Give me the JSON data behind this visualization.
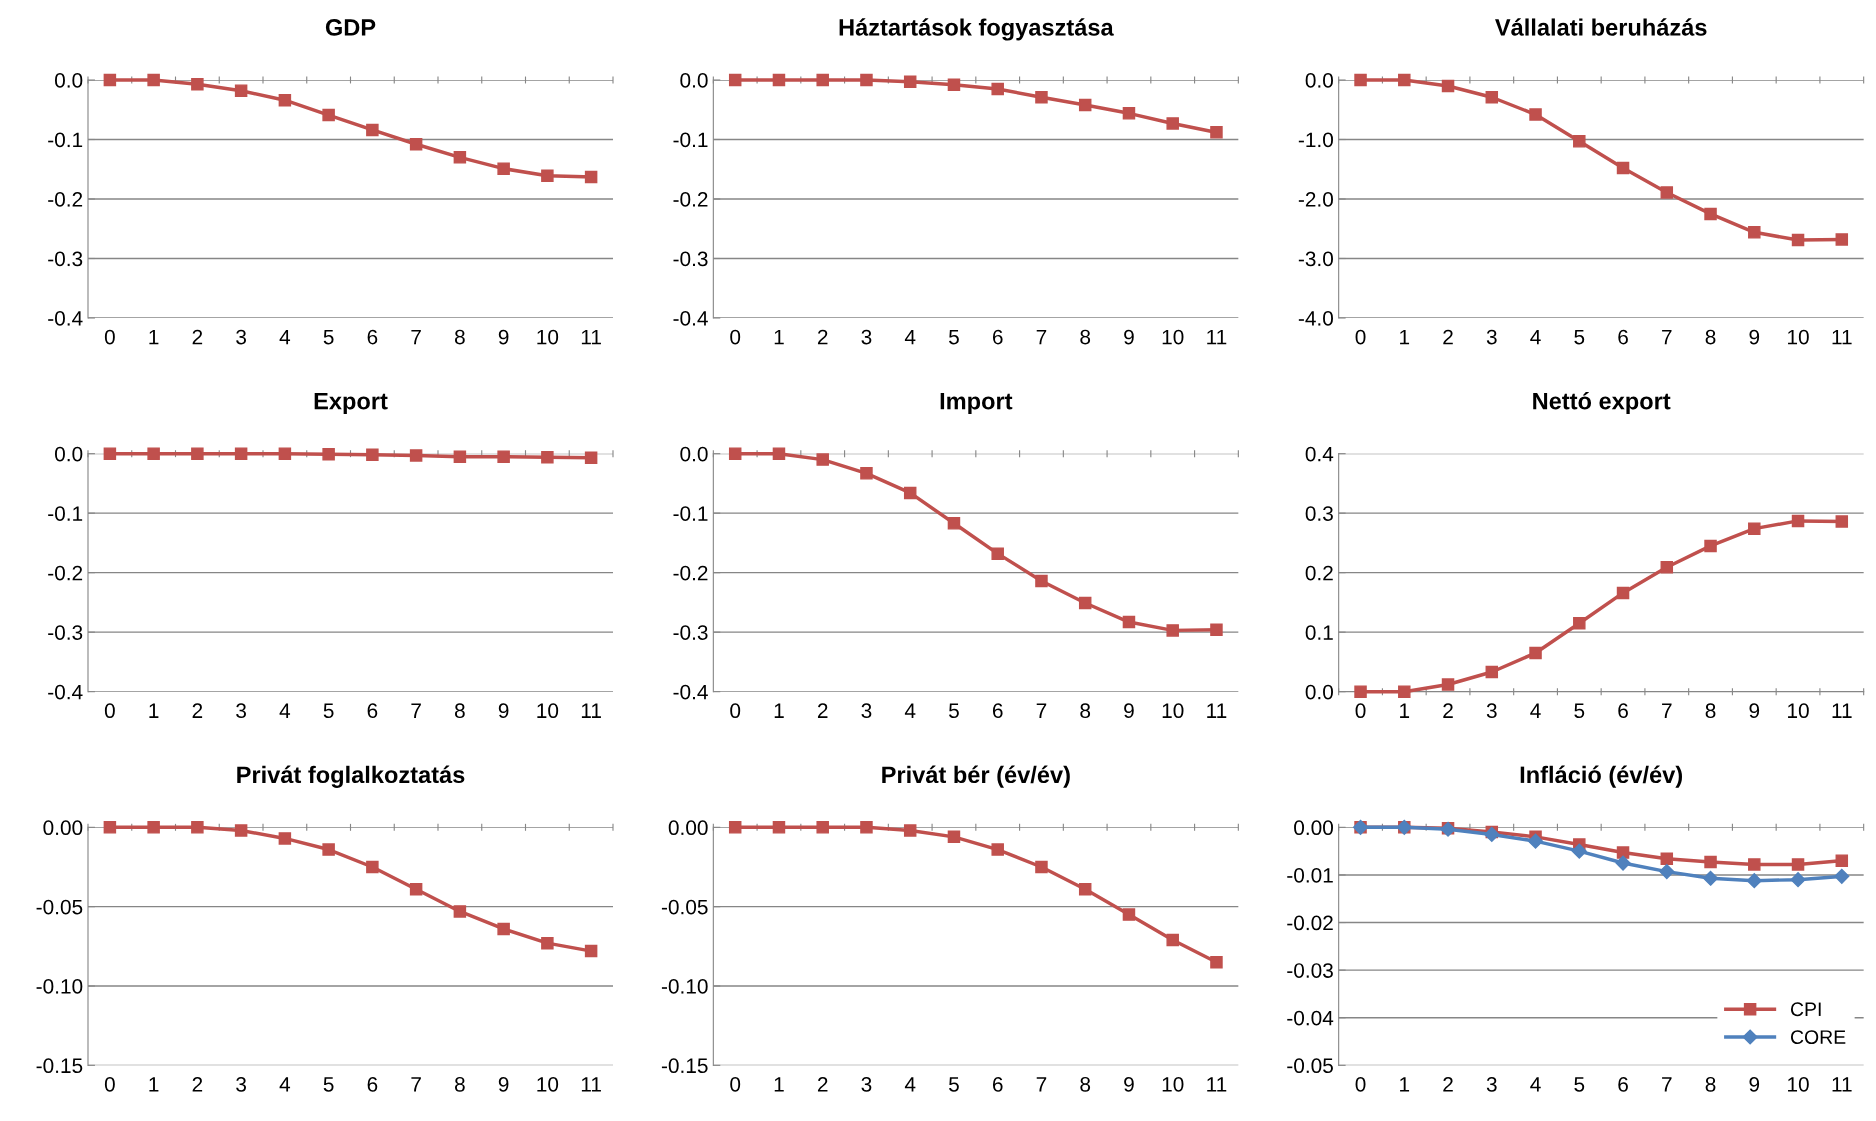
{
  "chart_data": [
    {
      "type": "line",
      "title": "GDP",
      "categories": [
        "0",
        "1",
        "2",
        "3",
        "4",
        "5",
        "6",
        "7",
        "8",
        "9",
        "10",
        "11"
      ],
      "ylim": [
        -0.4,
        0
      ],
      "yticks": [
        {
          "value": 0,
          "label": "0.0"
        },
        {
          "value": -0.1,
          "label": "-0.1"
        },
        {
          "value": -0.2,
          "label": "-0.2"
        },
        {
          "value": -0.3,
          "label": "-0.3"
        },
        {
          "value": -0.4,
          "label": "-0.4"
        }
      ],
      "grid": "y",
      "marker": "square",
      "series": [
        {
          "color": "#c0504d",
          "values": [
            0,
            0,
            -0.007,
            -0.018,
            -0.034,
            -0.059,
            -0.084,
            -0.108,
            -0.13,
            -0.149,
            -0.161,
            -0.163
          ]
        }
      ]
    },
    {
      "type": "line",
      "title": "Háztartások fogyasztása",
      "categories": [
        "0",
        "1",
        "2",
        "3",
        "4",
        "5",
        "6",
        "7",
        "8",
        "9",
        "10",
        "11"
      ],
      "ylim": [
        -0.4,
        0
      ],
      "yticks": [
        {
          "value": 0,
          "label": "0.0"
        },
        {
          "value": -0.1,
          "label": "-0.1"
        },
        {
          "value": -0.2,
          "label": "-0.2"
        },
        {
          "value": -0.3,
          "label": "-0.3"
        },
        {
          "value": -0.4,
          "label": "-0.4"
        }
      ],
      "grid": "y",
      "marker": "square",
      "series": [
        {
          "color": "#c0504d",
          "values": [
            0,
            0,
            0,
            0,
            -0.003,
            -0.008,
            -0.015,
            -0.029,
            -0.042,
            -0.056,
            -0.073,
            -0.088
          ]
        }
      ]
    },
    {
      "type": "line",
      "title": "Vállalati beruházás",
      "categories": [
        "0",
        "1",
        "2",
        "3",
        "4",
        "5",
        "6",
        "7",
        "8",
        "9",
        "10",
        "11"
      ],
      "ylim": [
        -4,
        0
      ],
      "yticks": [
        {
          "value": 0,
          "label": "0.0"
        },
        {
          "value": -1,
          "label": "-1.0"
        },
        {
          "value": -2,
          "label": "-2.0"
        },
        {
          "value": -3,
          "label": "-3.0"
        },
        {
          "value": -4,
          "label": "-4.0"
        }
      ],
      "grid": "y",
      "marker": "square",
      "series": [
        {
          "color": "#c0504d",
          "values": [
            0,
            0,
            -0.1,
            -0.29,
            -0.58,
            -1.03,
            -1.48,
            -1.89,
            -2.25,
            -2.56,
            -2.69,
            -2.68
          ]
        }
      ]
    },
    {
      "type": "line",
      "title": "Export",
      "categories": [
        "0",
        "1",
        "2",
        "3",
        "4",
        "5",
        "6",
        "7",
        "8",
        "9",
        "10",
        "11"
      ],
      "ylim": [
        -0.4,
        0
      ],
      "yticks": [
        {
          "value": 0,
          "label": "0.0"
        },
        {
          "value": -0.1,
          "label": "-0.1"
        },
        {
          "value": -0.2,
          "label": "-0.2"
        },
        {
          "value": -0.3,
          "label": "-0.3"
        },
        {
          "value": -0.4,
          "label": "-0.4"
        }
      ],
      "grid": "y",
      "marker": "square",
      "series": [
        {
          "color": "#c0504d",
          "values": [
            0,
            0,
            0,
            0,
            0,
            -0.001,
            -0.002,
            -0.003,
            -0.005,
            -0.005,
            -0.006,
            -0.007
          ]
        }
      ]
    },
    {
      "type": "line",
      "title": "Import",
      "categories": [
        "0",
        "1",
        "2",
        "3",
        "4",
        "5",
        "6",
        "7",
        "8",
        "9",
        "10",
        "11"
      ],
      "ylim": [
        -0.4,
        0
      ],
      "yticks": [
        {
          "value": 0,
          "label": "0.0"
        },
        {
          "value": -0.1,
          "label": "-0.1"
        },
        {
          "value": -0.2,
          "label": "-0.2"
        },
        {
          "value": -0.3,
          "label": "-0.3"
        },
        {
          "value": -0.4,
          "label": "-0.4"
        }
      ],
      "grid": "y",
      "marker": "square",
      "series": [
        {
          "color": "#c0504d",
          "values": [
            0,
            0,
            -0.01,
            -0.033,
            -0.066,
            -0.117,
            -0.168,
            -0.214,
            -0.251,
            -0.283,
            -0.297,
            -0.296
          ]
        }
      ]
    },
    {
      "type": "line",
      "title": "Nettó export",
      "categories": [
        "0",
        "1",
        "2",
        "3",
        "4",
        "5",
        "6",
        "7",
        "8",
        "9",
        "10",
        "11"
      ],
      "ylim": [
        0,
        0.4
      ],
      "yticks": [
        {
          "value": 0,
          "label": "0.0"
        },
        {
          "value": 0.1,
          "label": "0.1"
        },
        {
          "value": 0.2,
          "label": "0.2"
        },
        {
          "value": 0.3,
          "label": "0.3"
        },
        {
          "value": 0.4,
          "label": "0.4"
        }
      ],
      "grid": "y",
      "marker": "square",
      "series": [
        {
          "color": "#c0504d",
          "values": [
            0,
            0,
            0.012,
            0.033,
            0.065,
            0.115,
            0.166,
            0.209,
            0.245,
            0.274,
            0.287,
            0.286
          ]
        }
      ]
    },
    {
      "type": "line",
      "title": "Privát foglalkoztatás",
      "categories": [
        "0",
        "1",
        "2",
        "3",
        "4",
        "5",
        "6",
        "7",
        "8",
        "9",
        "10",
        "11"
      ],
      "ylim": [
        -0.15,
        0
      ],
      "yticks": [
        {
          "value": 0,
          "label": "0.00"
        },
        {
          "value": -0.05,
          "label": "-0.05"
        },
        {
          "value": -0.1,
          "label": "-0.10"
        },
        {
          "value": -0.15,
          "label": "-0.15"
        }
      ],
      "grid": "y",
      "marker": "square",
      "series": [
        {
          "color": "#c0504d",
          "values": [
            0,
            0,
            0,
            -0.002,
            -0.007,
            -0.014,
            -0.025,
            -0.039,
            -0.053,
            -0.064,
            -0.073,
            -0.078
          ]
        }
      ]
    },
    {
      "type": "line",
      "title": "Privát bér (év/év)",
      "categories": [
        "0",
        "1",
        "2",
        "3",
        "4",
        "5",
        "6",
        "7",
        "8",
        "9",
        "10",
        "11"
      ],
      "ylim": [
        -0.15,
        0
      ],
      "yticks": [
        {
          "value": 0,
          "label": "0.00"
        },
        {
          "value": -0.05,
          "label": "-0.05"
        },
        {
          "value": -0.1,
          "label": "-0.10"
        },
        {
          "value": -0.15,
          "label": "-0.15"
        }
      ],
      "grid": "y",
      "marker": "square",
      "series": [
        {
          "color": "#c0504d",
          "values": [
            0,
            0,
            0,
            0,
            -0.002,
            -0.006,
            -0.014,
            -0.025,
            -0.039,
            -0.055,
            -0.071,
            -0.085
          ]
        }
      ]
    },
    {
      "type": "line",
      "title": "Infláció (év/év)",
      "categories": [
        "0",
        "1",
        "2",
        "3",
        "4",
        "5",
        "6",
        "7",
        "8",
        "9",
        "10",
        "11"
      ],
      "ylim": [
        -0.05,
        0
      ],
      "yticks": [
        {
          "value": 0,
          "label": "0.00"
        },
        {
          "value": -0.01,
          "label": "-0.01"
        },
        {
          "value": -0.02,
          "label": "-0.02"
        },
        {
          "value": -0.03,
          "label": "-0.03"
        },
        {
          "value": -0.04,
          "label": "-0.04"
        },
        {
          "value": -0.05,
          "label": "-0.05"
        }
      ],
      "grid": "y",
      "legend": "bottom right",
      "series": [
        {
          "name": "CPI",
          "color": "#c0504d",
          "marker": "square",
          "values": [
            0,
            0,
            -0.0002,
            -0.001,
            -0.002,
            -0.0036,
            -0.0053,
            -0.0066,
            -0.0073,
            -0.0078,
            -0.0078,
            -0.007
          ]
        },
        {
          "name": "CORE",
          "color": "#4f81bd",
          "marker": "diamond",
          "values": [
            0,
            0,
            -0.0004,
            -0.0015,
            -0.0029,
            -0.005,
            -0.0075,
            -0.0093,
            -0.0107,
            -0.0112,
            -0.011,
            -0.0103
          ]
        }
      ]
    }
  ]
}
